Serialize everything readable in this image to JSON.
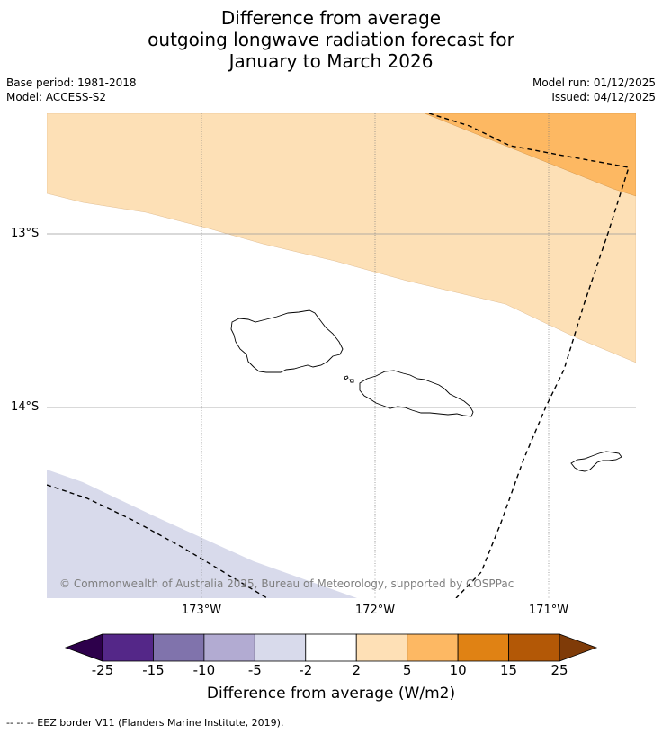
{
  "title": {
    "line1": "Difference from average",
    "line2": "outgoing longwave radiation forecast for",
    "line3": "January to March 2026"
  },
  "meta": {
    "base_period": "Base period: 1981-2018",
    "model": "Model: ACCESS-S2",
    "model_run": "Model run: 01/12/2025",
    "issued": "Issued: 04/12/2025"
  },
  "map": {
    "lat_labels": [
      "13°S",
      "14°S"
    ],
    "lon_labels": [
      "173°W",
      "172°W",
      "171°W"
    ],
    "copyright": "© Commonwealth of Australia 2025, Bureau of Meteorology, supported by COSPPac",
    "colors": {
      "light_orange": "#fde0b6",
      "orange": "#fdb862",
      "light_purple": "#d8daeb",
      "land_outline": "#000000"
    }
  },
  "colorbar": {
    "label": "Difference from average (W/m2)",
    "ticks": [
      "-25",
      "-15",
      "-10",
      "-5",
      "-2",
      "2",
      "5",
      "10",
      "15",
      "25"
    ],
    "colors": [
      "#2d004b",
      "#542788",
      "#8073ac",
      "#b2abd2",
      "#d8daeb",
      "#ffffff",
      "#fee0b6",
      "#fdb863",
      "#e08214",
      "#b35806",
      "#7f3b08"
    ]
  },
  "footnote": "--  --  -- EEZ border V11 (Flanders Marine Institute, 2019)."
}
